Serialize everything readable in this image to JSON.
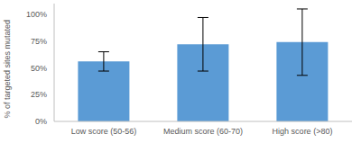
{
  "chart_data": {
    "type": "bar",
    "y_label": "% of targeted sites mutated",
    "categories": [
      "Low score (50-56)",
      "Medium score (60-70)",
      "High score (>80)"
    ],
    "values": [
      56,
      72,
      74
    ],
    "errors": [
      9,
      25,
      31
    ],
    "color": "#5b9bd5",
    "ylim": [
      0,
      110
    ],
    "yticks": [
      {
        "value": 0,
        "label": "0%"
      },
      {
        "value": 25,
        "label": "25%"
      },
      {
        "value": 50,
        "label": "50%"
      },
      {
        "value": 75,
        "label": "75%"
      },
      {
        "value": 100,
        "label": "100%"
      }
    ],
    "grid": false
  }
}
